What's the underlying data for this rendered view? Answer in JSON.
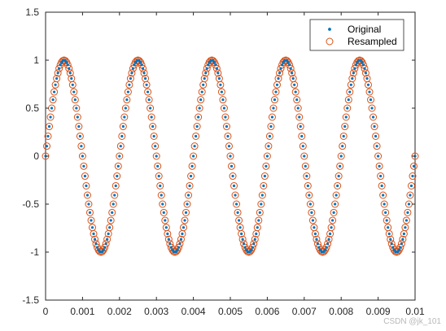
{
  "chart_data": {
    "type": "scatter",
    "function": "sin(2*pi*500*t)",
    "xlim": [
      0,
      0.01
    ],
    "ylim": [
      -1.5,
      1.5
    ],
    "x_ticks": [
      0,
      0.001,
      0.002,
      0.003,
      0.004,
      0.005,
      0.006,
      0.007,
      0.008,
      0.009,
      0.01
    ],
    "x_tick_labels": [
      "0",
      "0.001",
      "0.002",
      "0.003",
      "0.004",
      "0.005",
      "0.006",
      "0.007",
      "0.008",
      "0.009",
      "0.01"
    ],
    "y_ticks": [
      -1.5,
      -1,
      -0.5,
      0,
      0.5,
      1,
      1.5
    ],
    "y_tick_labels": [
      "-1.5",
      "-1",
      "-0.5",
      "0",
      "0.5",
      "1",
      "1.5"
    ],
    "grid": false,
    "legend_position": "top-right",
    "series": [
      {
        "name": "Original",
        "marker": "dot",
        "color": "#0072BD",
        "x_start": 0,
        "x_step": 3.33e-05,
        "x_end": 0.01
      },
      {
        "name": "Resampled",
        "marker": "circle",
        "color": "#D95319",
        "x_start": 0,
        "x_step": 3.33e-05,
        "x_end": 0.01
      }
    ]
  },
  "watermark": "CSDN @jk_101"
}
